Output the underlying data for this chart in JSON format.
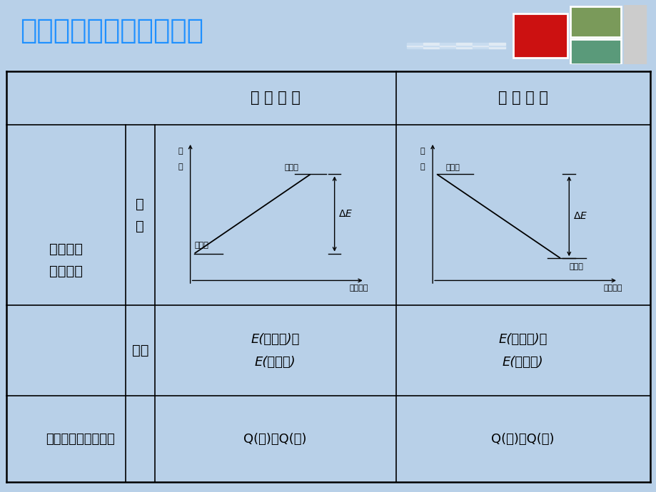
{
  "title": "化学能与热能的相互转化",
  "title_color": "#1E90FF",
  "bg_color": "#B8D0E8",
  "table_bg": "#FFFFFF",
  "line_color": "#000000",
  "text_color": "#000000",
  "header_endo": "吸 热 反 应",
  "header_exo": "放 热 反 应",
  "cell_energy": "能量角度\n（宏观）",
  "cell_diagram": "图\n示",
  "cell_change": "变化",
  "cell_bond": "化学键变化（微观）",
  "cell_endo_change": "E(反应物)＜\nE(生成物)",
  "cell_exo_change": "E(反应物)＞\nE(生成物)",
  "cell_endo_bond": "Q(吸)＞Q(放)",
  "cell_exo_bond": "Q(吸)＜Q(放)",
  "y_label_1": "能",
  "y_label_2": "量",
  "x_label": "反应过程",
  "reactant": "反应物",
  "product": "生成物"
}
